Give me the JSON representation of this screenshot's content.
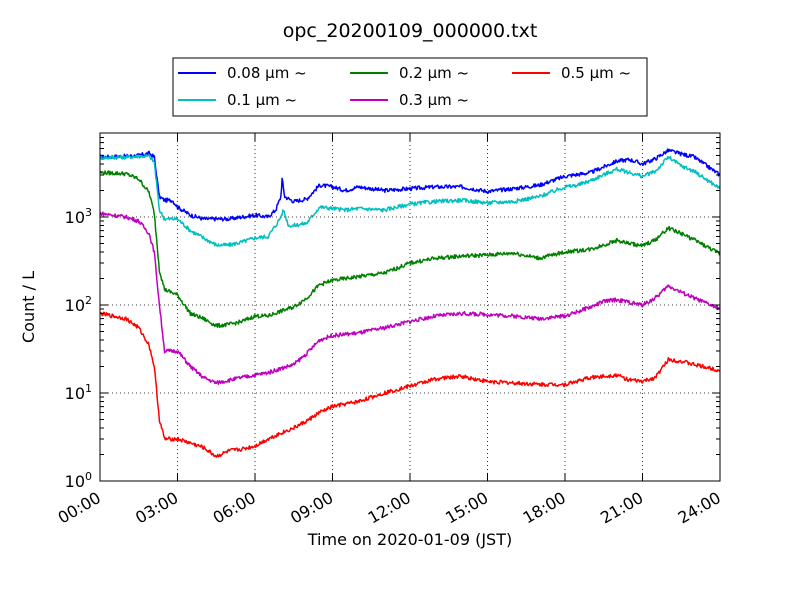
{
  "chart_data": {
    "type": "line",
    "title": "opc_20200109_000000.txt",
    "xlabel": "Time on 2020-01-09 (JST)",
    "ylabel": "Count / L",
    "x_unit": "hours",
    "xlim": [
      0,
      24
    ],
    "ylim": [
      1,
      9000
    ],
    "yscale": "log",
    "grid": true,
    "legend_position": "top-center, above plot",
    "x_ticks": [
      "00:00",
      "03:00",
      "06:00",
      "09:00",
      "12:00",
      "15:00",
      "18:00",
      "21:00",
      "24:00"
    ],
    "y_ticks": [
      {
        "base": "10",
        "exp": "0"
      },
      {
        "base": "10",
        "exp": "1"
      },
      {
        "base": "10",
        "exp": "2"
      },
      {
        "base": "10",
        "exp": "3"
      }
    ],
    "series": [
      {
        "name": "0.08 μm ~",
        "color": "#0000ff",
        "points": [
          [
            0,
            4800
          ],
          [
            1,
            4900
          ],
          [
            1.5,
            5000
          ],
          [
            1.9,
            5300
          ],
          [
            2.1,
            4800
          ],
          [
            2.3,
            1700
          ],
          [
            2.5,
            1550
          ],
          [
            2.8,
            1550
          ],
          [
            3,
            1300
          ],
          [
            3.5,
            1050
          ],
          [
            4,
            950
          ],
          [
            5,
            950
          ],
          [
            5.5,
            1000
          ],
          [
            6,
            1050
          ],
          [
            6.5,
            1000
          ],
          [
            6.8,
            1200
          ],
          [
            7,
            1700
          ],
          [
            7.05,
            2700
          ],
          [
            7.15,
            1700
          ],
          [
            7.5,
            1500
          ],
          [
            8,
            1600
          ],
          [
            8.5,
            2300
          ],
          [
            9,
            2200
          ],
          [
            9.5,
            2000
          ],
          [
            10,
            2200
          ],
          [
            11,
            2000
          ],
          [
            12,
            2100
          ],
          [
            13,
            2200
          ],
          [
            14,
            2200
          ],
          [
            15,
            1950
          ],
          [
            16,
            2100
          ],
          [
            17,
            2300
          ],
          [
            18,
            2900
          ],
          [
            19,
            3200
          ],
          [
            20,
            4300
          ],
          [
            20.5,
            4500
          ],
          [
            21,
            4000
          ],
          [
            21.5,
            4600
          ],
          [
            22,
            5700
          ],
          [
            22.5,
            5200
          ],
          [
            23,
            4800
          ],
          [
            24,
            3000
          ]
        ]
      },
      {
        "name": "0.1 μm ~",
        "color": "#00bfbf",
        "points": [
          [
            0,
            4700
          ],
          [
            1,
            4800
          ],
          [
            1.5,
            4900
          ],
          [
            1.9,
            4900
          ],
          [
            2.1,
            4200
          ],
          [
            2.3,
            1200
          ],
          [
            2.5,
            950
          ],
          [
            3,
            950
          ],
          [
            3.5,
            700
          ],
          [
            4,
            580
          ],
          [
            4.5,
            480
          ],
          [
            5,
            480
          ],
          [
            5.5,
            520
          ],
          [
            6,
            580
          ],
          [
            6.5,
            600
          ],
          [
            6.8,
            800
          ],
          [
            7,
            1000
          ],
          [
            7.1,
            1200
          ],
          [
            7.3,
            800
          ],
          [
            7.5,
            800
          ],
          [
            8,
            850
          ],
          [
            8.5,
            1300
          ],
          [
            9,
            1250
          ],
          [
            9.5,
            1200
          ],
          [
            10,
            1250
          ],
          [
            11,
            1200
          ],
          [
            12,
            1400
          ],
          [
            13,
            1500
          ],
          [
            14,
            1550
          ],
          [
            15,
            1450
          ],
          [
            16,
            1500
          ],
          [
            17,
            1700
          ],
          [
            18,
            2200
          ],
          [
            18.5,
            2300
          ],
          [
            19,
            2600
          ],
          [
            20,
            3500
          ],
          [
            21,
            2900
          ],
          [
            21.5,
            3300
          ],
          [
            22,
            4800
          ],
          [
            22.5,
            3800
          ],
          [
            23,
            3300
          ],
          [
            24,
            2100
          ]
        ]
      },
      {
        "name": "0.2 μm ~",
        "color": "#008000",
        "points": [
          [
            0,
            3200
          ],
          [
            1,
            3100
          ],
          [
            1.5,
            2700
          ],
          [
            1.9,
            1900
          ],
          [
            2.1,
            1100
          ],
          [
            2.3,
            250
          ],
          [
            2.5,
            150
          ],
          [
            3,
            130
          ],
          [
            3.5,
            80
          ],
          [
            4,
            70
          ],
          [
            4.5,
            58
          ],
          [
            5,
            60
          ],
          [
            5.5,
            65
          ],
          [
            6,
            75
          ],
          [
            6.5,
            75
          ],
          [
            7,
            85
          ],
          [
            7.5,
            95
          ],
          [
            8,
            120
          ],
          [
            8.5,
            170
          ],
          [
            9,
            190
          ],
          [
            10,
            210
          ],
          [
            11,
            230
          ],
          [
            12,
            300
          ],
          [
            13,
            340
          ],
          [
            14,
            360
          ],
          [
            15,
            370
          ],
          [
            16,
            390
          ],
          [
            17,
            340
          ],
          [
            18,
            400
          ],
          [
            19,
            430
          ],
          [
            20,
            540
          ],
          [
            20.5,
            500
          ],
          [
            21,
            470
          ],
          [
            21.5,
            550
          ],
          [
            22,
            750
          ],
          [
            22.5,
            650
          ],
          [
            23,
            550
          ],
          [
            24,
            380
          ]
        ]
      },
      {
        "name": "0.3 μm ~",
        "color": "#bf00bf",
        "points": [
          [
            0,
            1100
          ],
          [
            1,
            1000
          ],
          [
            1.5,
            900
          ],
          [
            1.9,
            650
          ],
          [
            2.1,
            400
          ],
          [
            2.3,
            100
          ],
          [
            2.5,
            30
          ],
          [
            3,
            30
          ],
          [
            3.5,
            20
          ],
          [
            4,
            15
          ],
          [
            4.5,
            13
          ],
          [
            5,
            14
          ],
          [
            5.5,
            15
          ],
          [
            6,
            16
          ],
          [
            6.5,
            17
          ],
          [
            7,
            19
          ],
          [
            7.5,
            21
          ],
          [
            8,
            28
          ],
          [
            8.5,
            40
          ],
          [
            9,
            45
          ],
          [
            10,
            48
          ],
          [
            11,
            55
          ],
          [
            12,
            65
          ],
          [
            13,
            75
          ],
          [
            14,
            80
          ],
          [
            15,
            78
          ],
          [
            16,
            75
          ],
          [
            17,
            70
          ],
          [
            18,
            75
          ],
          [
            19,
            95
          ],
          [
            19.5,
            110
          ],
          [
            20,
            115
          ],
          [
            21,
            100
          ],
          [
            21.5,
            120
          ],
          [
            22,
            165
          ],
          [
            22.5,
            140
          ],
          [
            23,
            120
          ],
          [
            24,
            90
          ]
        ]
      },
      {
        "name": "0.5 μm ~",
        "color": "#ff0000",
        "points": [
          [
            0,
            80
          ],
          [
            1,
            70
          ],
          [
            1.5,
            55
          ],
          [
            1.9,
            35
          ],
          [
            2.1,
            20
          ],
          [
            2.3,
            5
          ],
          [
            2.5,
            3
          ],
          [
            3,
            3
          ],
          [
            3.5,
            2.7
          ],
          [
            4,
            2.4
          ],
          [
            4.5,
            1.9
          ],
          [
            5,
            2.2
          ],
          [
            5.5,
            2.3
          ],
          [
            6,
            2.5
          ],
          [
            6.5,
            3
          ],
          [
            7,
            3.5
          ],
          [
            7.5,
            4
          ],
          [
            8,
            4.8
          ],
          [
            8.5,
            6
          ],
          [
            9,
            7
          ],
          [
            10,
            8
          ],
          [
            11,
            10
          ],
          [
            12,
            12
          ],
          [
            13,
            14.5
          ],
          [
            14,
            15.5
          ],
          [
            15,
            13.5
          ],
          [
            16,
            13
          ],
          [
            17,
            12.5
          ],
          [
            18,
            12.5
          ],
          [
            19,
            15
          ],
          [
            20,
            16
          ],
          [
            20.5,
            14
          ],
          [
            21,
            13.5
          ],
          [
            21.5,
            15
          ],
          [
            22,
            24
          ],
          [
            22.5,
            23
          ],
          [
            23,
            21
          ],
          [
            24,
            18
          ]
        ]
      }
    ]
  }
}
